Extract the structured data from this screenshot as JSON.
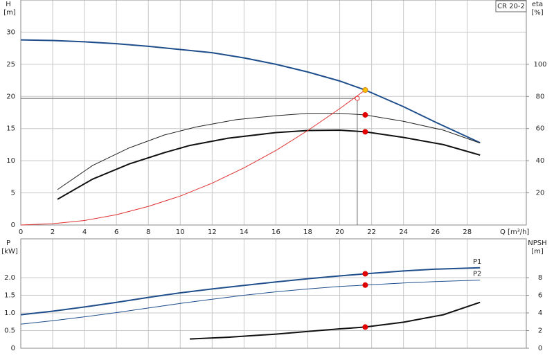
{
  "chart_data": [
    {
      "type": "line",
      "title": "CR 20-2",
      "ylabel": "H",
      "yunit": "[m]",
      "y2label": "eta",
      "y2unit": "[%]",
      "xlabel": "Q [m³/h]",
      "xlim": [
        0,
        31.7
      ],
      "xticks": [
        0,
        2,
        4,
        6,
        8,
        10,
        12,
        14,
        16,
        18,
        20,
        22,
        24,
        26,
        28
      ],
      "ylim": [
        0,
        35
      ],
      "yticks": [
        0,
        5,
        10,
        15,
        20,
        25,
        30
      ],
      "y2lim": [
        0,
        140
      ],
      "y2ticks": [
        20,
        40,
        60,
        80,
        100
      ],
      "grid": true,
      "series": [
        {
          "color": "#1f4e8c",
          "style": "thick",
          "x": [
            0,
            2,
            4,
            6,
            8,
            10,
            12,
            14,
            16,
            18,
            20,
            21.6,
            24,
            26,
            28.8
          ],
          "values": [
            28.8,
            28.7,
            28.5,
            28.2,
            27.8,
            27.3,
            26.8,
            26.0,
            25.0,
            23.8,
            22.4,
            21.0,
            18.4,
            16.0,
            12.8
          ]
        },
        {
          "color": "#222222",
          "style": "thin",
          "axis": "y2",
          "x": [
            2.3,
            4.5,
            6.8,
            9,
            11,
            13.5,
            16,
            18,
            20,
            21.6,
            24,
            26.5,
            28.8
          ],
          "values": [
            22,
            37,
            48,
            56,
            61,
            65.5,
            68,
            69.5,
            69.5,
            68.5,
            64.5,
            59,
            51
          ]
        },
        {
          "color": "#111111",
          "style": "thick",
          "axis": "y2",
          "x": [
            2.3,
            4.5,
            6.8,
            9,
            10.6,
            13,
            16,
            18,
            20,
            21.6,
            24,
            26.5,
            28.8
          ],
          "values": [
            16,
            28.5,
            38,
            45,
            49.5,
            54,
            57.5,
            58.8,
            59,
            58,
            54.5,
            50,
            43.5
          ]
        },
        {
          "color": "#e03030",
          "style": "thin",
          "x": [
            0,
            2,
            4,
            6,
            8,
            10,
            12,
            14,
            16,
            18,
            20,
            21.6
          ],
          "values": [
            0,
            0.2,
            0.7,
            1.6,
            2.9,
            4.5,
            6.5,
            8.9,
            11.6,
            14.7,
            18.1,
            21.0
          ]
        }
      ],
      "markers": [
        {
          "x": 21.6,
          "y": 21.0,
          "color": "#f5c400"
        },
        {
          "x": 21.6,
          "y": 68.5,
          "axis": "y2",
          "color": "#e00000"
        },
        {
          "x": 21.6,
          "y": 58,
          "axis": "y2",
          "color": "#e00000"
        },
        {
          "x": 21.1,
          "y": 19.7,
          "color": "none"
        }
      ],
      "reference": {
        "x": 21.1,
        "y": 19.7
      }
    },
    {
      "type": "line",
      "ylabel": "P",
      "yunit": "[kW]",
      "y2label": "NPSH",
      "y2unit": "[m]",
      "xlim": [
        0,
        31.7
      ],
      "xticks": [
        0,
        2,
        4,
        6,
        8,
        10,
        12,
        14,
        16,
        18,
        20,
        22,
        24,
        26,
        28
      ],
      "ylim": [
        0,
        3.1
      ],
      "yticks": [
        0,
        0.5,
        {
          "value": 1,
          "label": "1.0"
        },
        1.5,
        {
          "value": 2,
          "label": "2.0"
        }
      ],
      "y2lim": [
        0,
        12.4
      ],
      "y2ticks": [
        0,
        2,
        4,
        6,
        8
      ],
      "grid": true,
      "series": [
        {
          "name": "P1",
          "color": "#1f4e8c",
          "style": "thick",
          "x": [
            0,
            2,
            4,
            6,
            8,
            10,
            12,
            14,
            16,
            18,
            20,
            21.6,
            24,
            26,
            28.8
          ],
          "values": [
            0.95,
            1.05,
            1.17,
            1.3,
            1.44,
            1.57,
            1.68,
            1.78,
            1.88,
            1.97,
            2.05,
            2.11,
            2.19,
            2.24,
            2.28
          ]
        },
        {
          "name": "P2",
          "color": "#1f4e8c",
          "style": "thin",
          "x": [
            0,
            2,
            4,
            6,
            8,
            10,
            12,
            14,
            16,
            18,
            20,
            21.6,
            24,
            26,
            28.8
          ],
          "values": [
            0.68,
            0.78,
            0.89,
            1.01,
            1.14,
            1.27,
            1.39,
            1.5,
            1.6,
            1.68,
            1.75,
            1.79,
            1.85,
            1.89,
            1.93
          ]
        },
        {
          "color": "#111111",
          "style": "thick",
          "axis": "y2",
          "x": [
            10.6,
            13,
            16,
            18,
            20,
            21.6,
            24,
            26.5,
            28.8
          ],
          "values": [
            1.05,
            1.25,
            1.6,
            1.9,
            2.2,
            2.4,
            2.95,
            3.8,
            5.2
          ]
        }
      ],
      "markers": [
        {
          "x": 21.6,
          "y": 2.11,
          "color": "#e00000"
        },
        {
          "x": 21.6,
          "y": 1.79,
          "color": "#e00000"
        },
        {
          "x": 21.6,
          "y": 2.4,
          "axis": "y2",
          "color": "#e00000"
        }
      ]
    }
  ]
}
